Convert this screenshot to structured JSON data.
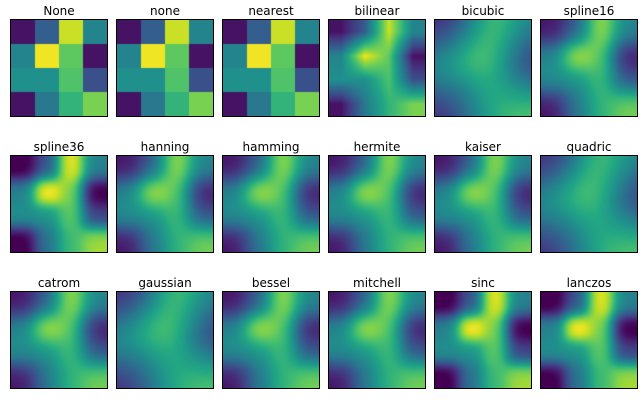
{
  "chart_data": {
    "type": "heatmap",
    "colormap": "viridis",
    "axes_ticks": false,
    "grid": false,
    "rows": 3,
    "cols": 6,
    "data": [
      [
        0.05,
        0.3,
        0.92,
        0.45
      ],
      [
        0.45,
        0.98,
        0.75,
        0.05
      ],
      [
        0.5,
        0.5,
        0.72,
        0.25
      ],
      [
        0.05,
        0.4,
        0.65,
        0.8
      ]
    ],
    "panels": [
      {
        "title": "None"
      },
      {
        "title": "none"
      },
      {
        "title": "nearest"
      },
      {
        "title": "bilinear"
      },
      {
        "title": "bicubic"
      },
      {
        "title": "spline16"
      },
      {
        "title": "spline36"
      },
      {
        "title": "hanning"
      },
      {
        "title": "hamming"
      },
      {
        "title": "hermite"
      },
      {
        "title": "kaiser"
      },
      {
        "title": "quadric"
      },
      {
        "title": "catrom"
      },
      {
        "title": "gaussian"
      },
      {
        "title": "bessel"
      },
      {
        "title": "mitchell"
      },
      {
        "title": "sinc"
      },
      {
        "title": "lanczos"
      }
    ]
  }
}
